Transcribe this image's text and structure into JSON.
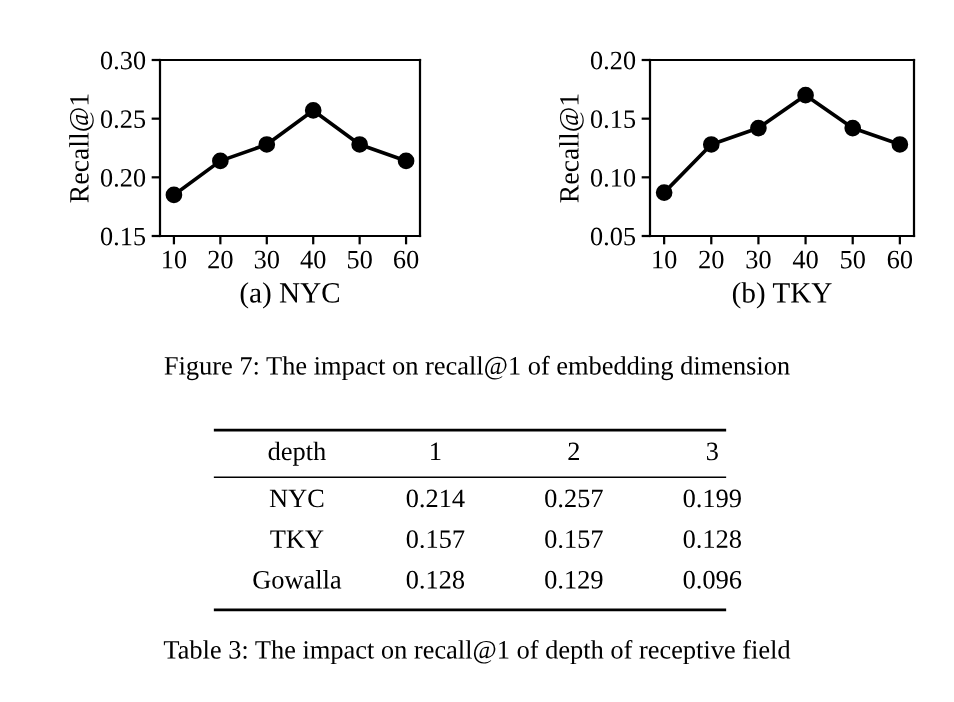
{
  "chart_data": [
    {
      "type": "line",
      "xlabel": "(a) NYC",
      "ylabel": "Recall@1",
      "x": [
        10,
        20,
        30,
        40,
        50,
        60
      ],
      "series": [
        {
          "color": "#000000",
          "values": [
            0.185,
            0.214,
            0.228,
            0.257,
            0.228,
            0.214
          ]
        }
      ],
      "xlim": [
        7,
        63
      ],
      "xticks": [
        10,
        20,
        30,
        40,
        50,
        60
      ],
      "ylim": [
        0.15,
        0.3
      ],
      "yticks": [
        {
          "value": 0.15,
          "label": "0.15"
        },
        {
          "value": 0.2,
          "label": "0.20"
        },
        {
          "value": 0.25,
          "label": "0.25"
        },
        {
          "value": 0.3,
          "label": "0.30"
        }
      ],
      "marker": "circle",
      "line_style": "solid",
      "grid": false,
      "legend": false,
      "annotations": [
        "Figure 7: The impact on recall@1 of embedding dimension"
      ]
    },
    {
      "type": "line",
      "xlabel": "(b) TKY",
      "ylabel": "Recall@1",
      "x": [
        10,
        20,
        30,
        40,
        50,
        60
      ],
      "series": [
        {
          "color": "#000000",
          "values": [
            0.087,
            0.128,
            0.142,
            0.17,
            0.142,
            0.128
          ]
        }
      ],
      "xlim": [
        7,
        63
      ],
      "xticks": [
        10,
        20,
        30,
        40,
        50,
        60
      ],
      "ylim": [
        0.05,
        0.2
      ],
      "yticks": [
        {
          "value": 0.05,
          "label": "0.05"
        },
        {
          "value": 0.1,
          "label": "0.10"
        },
        {
          "value": 0.15,
          "label": "0.15"
        },
        {
          "value": 0.2,
          "label": "0.20"
        }
      ],
      "marker": "circle",
      "line_style": "solid",
      "grid": false,
      "legend": false
    },
    {
      "type": "other",
      "title": "Table 3: The impact on recall@1 of depth of receptive field",
      "xlabel": "depth",
      "categories": [
        "1",
        "2",
        "3"
      ],
      "y_categories": [
        "NYC",
        "TKY",
        "Gowalla"
      ],
      "cell_labels": [
        [
          "0.214",
          "0.257",
          "0.199"
        ],
        [
          "0.157",
          "0.157",
          "0.128"
        ],
        [
          "0.128",
          "0.129",
          "0.096"
        ]
      ]
    }
  ]
}
